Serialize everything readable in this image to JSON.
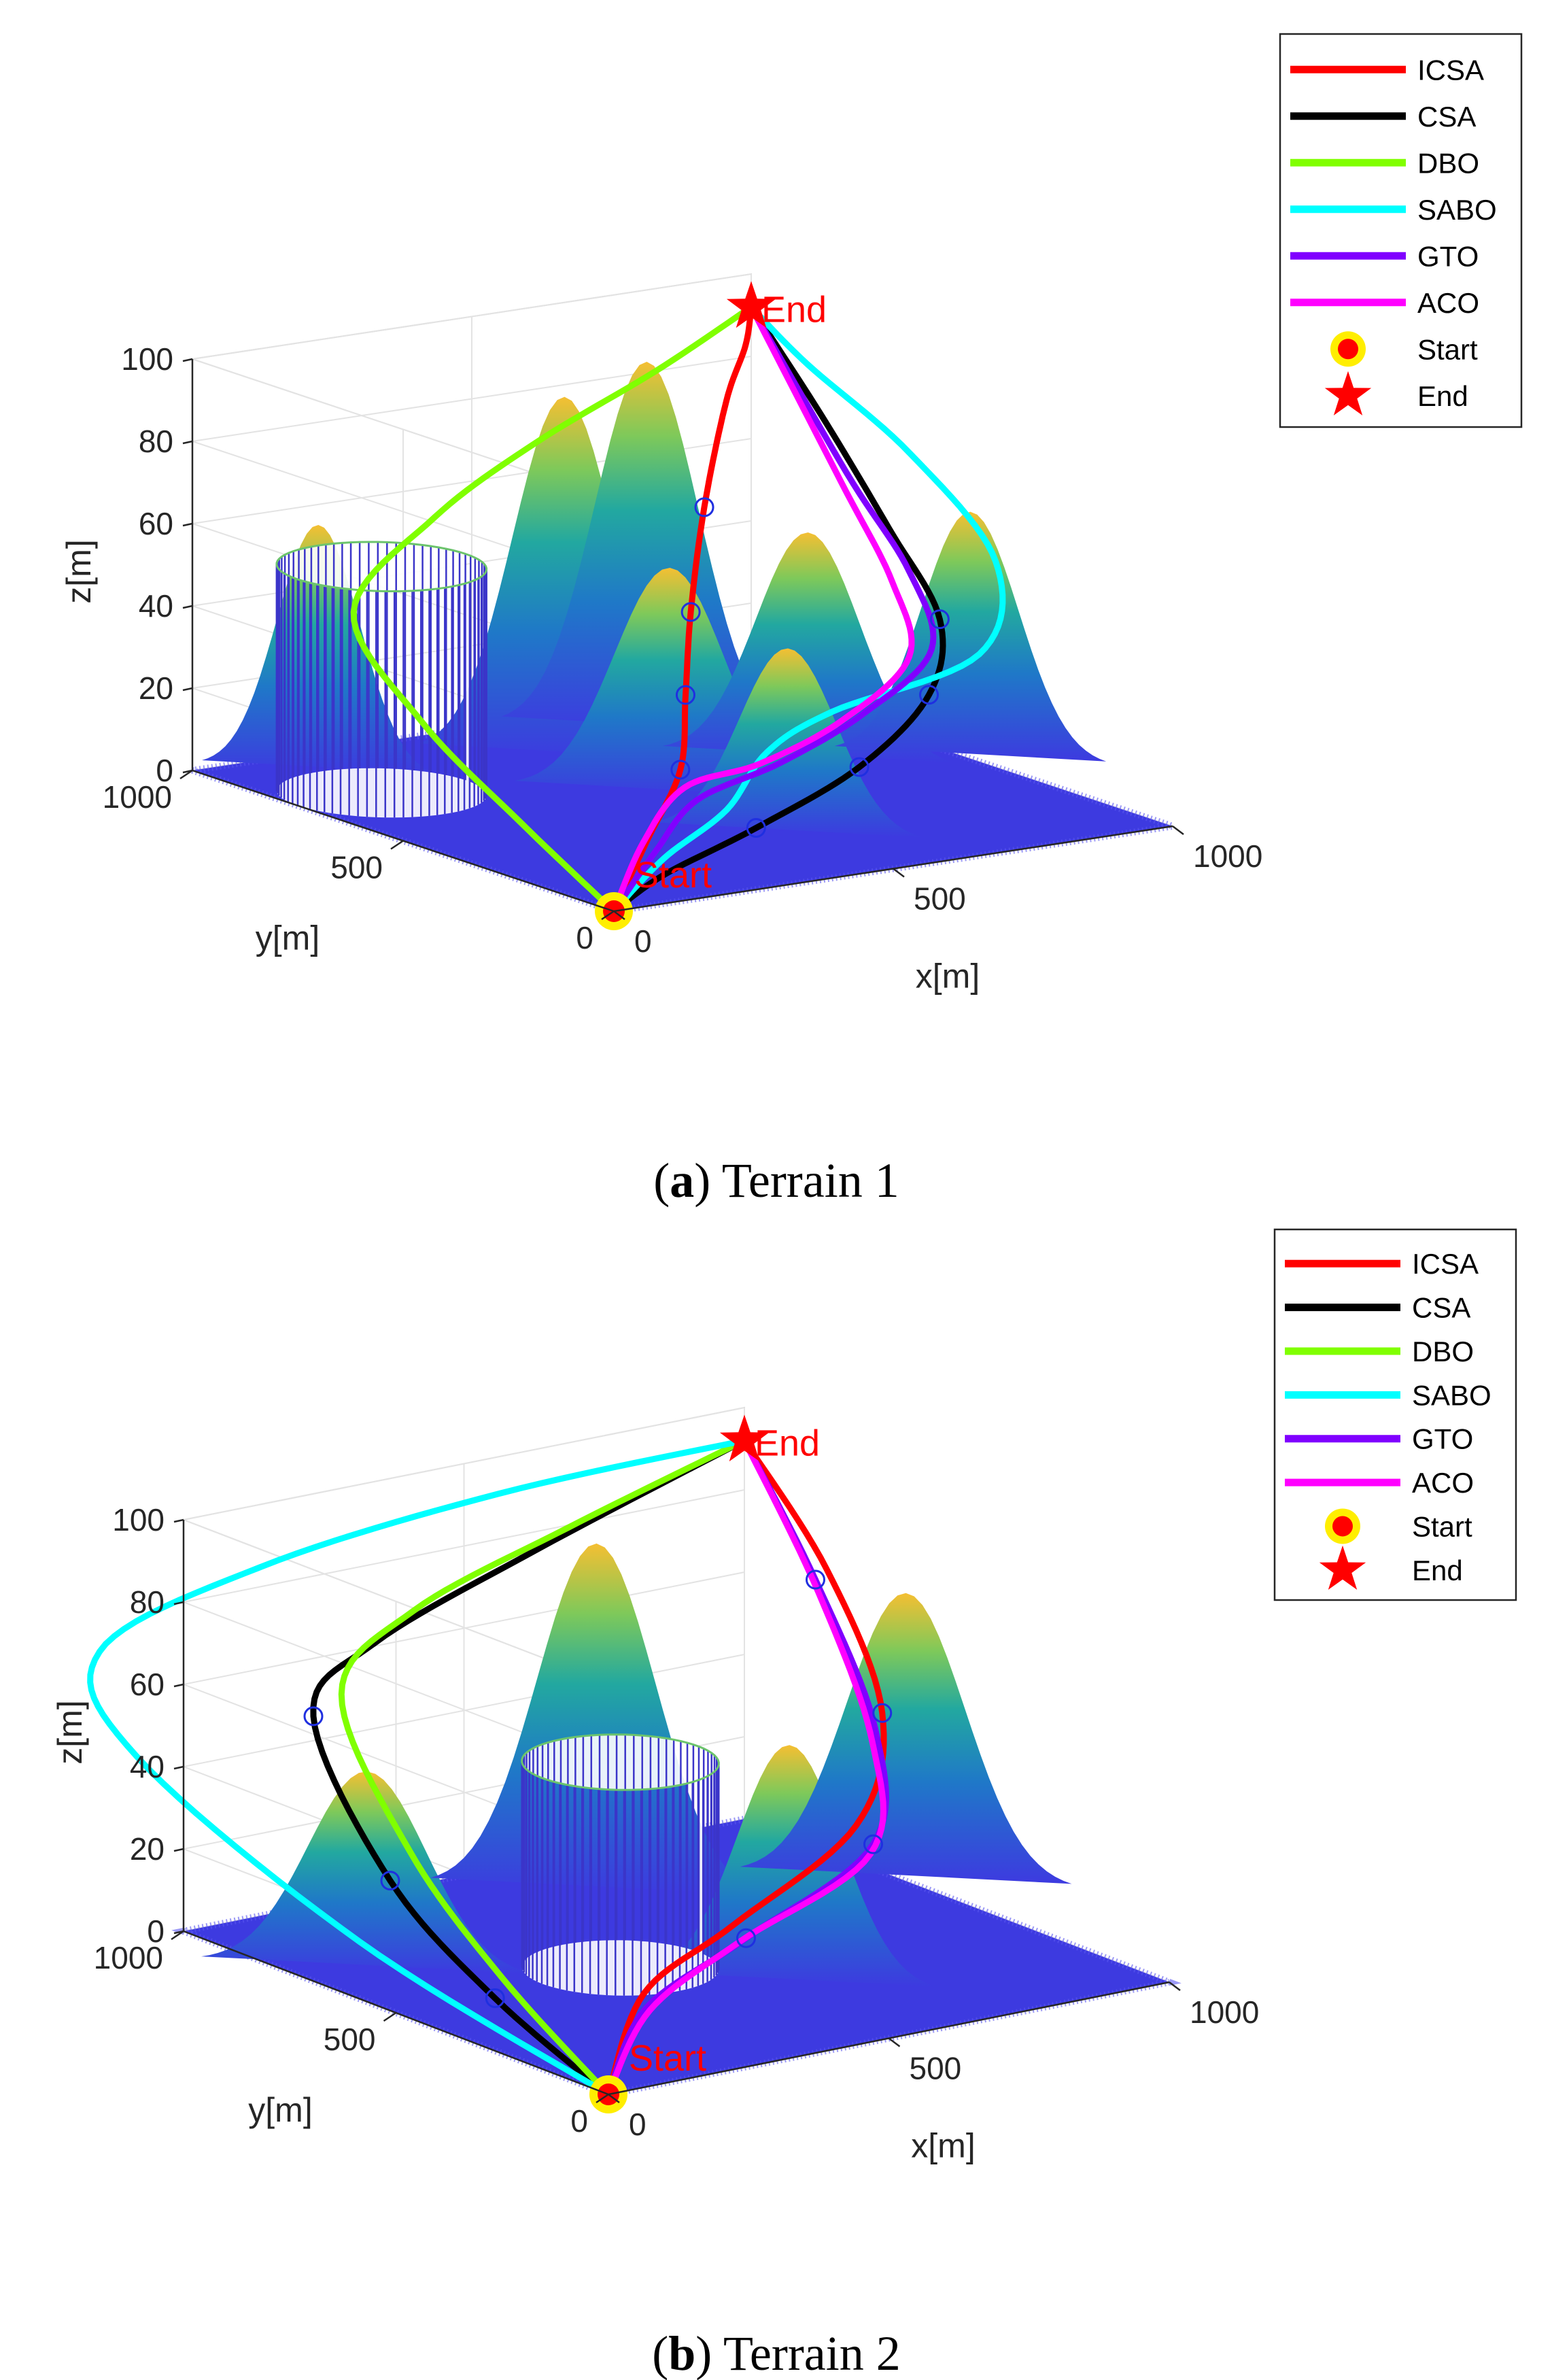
{
  "chart_data": [
    {
      "type": "3d-line",
      "panel_label": "a",
      "caption": "Terrain 1",
      "xlabel": "x[m]",
      "ylabel": "y[m]",
      "zlabel": "z[m]",
      "xlim": [
        0,
        1000
      ],
      "ylim": [
        0,
        1000
      ],
      "zlim": [
        0,
        100
      ],
      "xticks": [
        "0",
        "500",
        "1000"
      ],
      "yticks": [
        "0",
        "500",
        "1000"
      ],
      "zticks": [
        "0",
        "20",
        "40",
        "60",
        "80",
        "100"
      ],
      "start_label": "Start",
      "end_label": "End",
      "start": [
        0,
        0,
        0
      ],
      "end": [
        1000,
        1000,
        92
      ],
      "obstacles": [
        {
          "type": "cylinder",
          "center": [
            150,
            750
          ],
          "radius": 150,
          "height": 55
        }
      ],
      "peaks": [
        {
          "center": [
            150,
            900
          ],
          "height": 60,
          "sigma": 60
        },
        {
          "center": [
            500,
            780
          ],
          "height": 88,
          "sigma": 75
        },
        {
          "center": [
            700,
            850
          ],
          "height": 90,
          "sigma": 75
        },
        {
          "center": [
            500,
            530
          ],
          "height": 55,
          "sigma": 80
        },
        {
          "center": [
            800,
            600
          ],
          "height": 55,
          "sigma": 75
        },
        {
          "center": [
            500,
            250
          ],
          "height": 45,
          "sigma": 70
        },
        {
          "center": [
            1000,
            480
          ],
          "height": 60,
          "sigma": 70
        }
      ],
      "legend": {
        "location": "top-right",
        "entries": [
          {
            "label": "ICSA",
            "color": "#ff0000",
            "kind": "line"
          },
          {
            "label": "CSA",
            "color": "#000000",
            "kind": "line"
          },
          {
            "label": "DBO",
            "color": "#80ff00",
            "kind": "line"
          },
          {
            "label": "SABO",
            "color": "#00ffff",
            "kind": "line"
          },
          {
            "label": "GTO",
            "color": "#8000ff",
            "kind": "line"
          },
          {
            "label": "ACO",
            "color": "#ff00ff",
            "kind": "line"
          },
          {
            "label": "Start",
            "color": "#ff0000",
            "kind": "start-marker"
          },
          {
            "label": "End",
            "color": "#ff0000",
            "kind": "end-marker"
          }
        ]
      },
      "series": [
        {
          "name": "ICSA",
          "color": "#ff0000",
          "points": [
            [
              0,
              0,
              0
            ],
            [
              150,
              120,
              10
            ],
            [
              300,
              240,
              20
            ],
            [
              430,
              400,
              30
            ],
            [
              560,
              560,
              42
            ],
            [
              720,
              740,
              58
            ],
            [
              880,
              900,
              75
            ],
            [
              960,
              960,
              85
            ],
            [
              1000,
              1000,
              92
            ]
          ]
        },
        {
          "name": "CSA",
          "color": "#000000",
          "points": [
            [
              0,
              0,
              0
            ],
            [
              120,
              40,
              5
            ],
            [
              330,
              100,
              10
            ],
            [
              560,
              160,
              18
            ],
            [
              760,
              260,
              28
            ],
            [
              900,
              420,
              38
            ],
            [
              960,
              620,
              52
            ],
            [
              990,
              820,
              72
            ],
            [
              1000,
              1000,
              92
            ]
          ]
        },
        {
          "name": "DBO",
          "color": "#80ff00",
          "points": [
            [
              0,
              0,
              0
            ],
            [
              60,
              300,
              10
            ],
            [
              80,
              560,
              25
            ],
            [
              100,
              750,
              45
            ],
            [
              320,
              850,
              60
            ],
            [
              540,
              900,
              72
            ],
            [
              800,
              960,
              82
            ],
            [
              1000,
              1000,
              92
            ]
          ]
        },
        {
          "name": "SABO",
          "color": "#00ffff",
          "points": [
            [
              0,
              0,
              0
            ],
            [
              150,
              80,
              7
            ],
            [
              330,
              170,
              12
            ],
            [
              500,
              300,
              18
            ],
            [
              640,
              330,
              24
            ],
            [
              880,
              300,
              34
            ],
            [
              1000,
              420,
              50
            ],
            [
              1020,
              650,
              68
            ],
            [
              1010,
              880,
              82
            ],
            [
              1000,
              1000,
              92
            ]
          ]
        },
        {
          "name": "GTO",
          "color": "#8000ff",
          "points": [
            [
              0,
              0,
              0
            ],
            [
              150,
              100,
              8
            ],
            [
              300,
              200,
              14
            ],
            [
              480,
              240,
              18
            ],
            [
              660,
              280,
              25
            ],
            [
              840,
              360,
              34
            ],
            [
              920,
              520,
              46
            ],
            [
              960,
              720,
              62
            ],
            [
              1000,
              1000,
              92
            ]
          ]
        },
        {
          "name": "ACO",
          "color": "#ff00ff",
          "points": [
            [
              0,
              0,
              0
            ],
            [
              150,
              130,
              9
            ],
            [
              300,
              230,
              16
            ],
            [
              450,
              250,
              18
            ],
            [
              620,
              280,
              24
            ],
            [
              800,
              360,
              33
            ],
            [
              890,
              520,
              44
            ],
            [
              950,
              720,
              60
            ],
            [
              1000,
              1000,
              92
            ]
          ]
        }
      ],
      "waypoint_markers": [
        [
          300,
          240,
          20
        ],
        [
          430,
          400,
          30
        ],
        [
          560,
          560,
          42
        ],
        [
          720,
          740,
          58
        ],
        [
          330,
          100,
          10
        ],
        [
          560,
          160,
          18
        ],
        [
          760,
          260,
          28
        ],
        [
          900,
          420,
          38
        ]
      ]
    },
    {
      "type": "3d-line",
      "panel_label": "b",
      "caption": "Terrain 2",
      "xlabel": "x[m]",
      "ylabel": "y[m]",
      "zlabel": "z[m]",
      "xlim": [
        0,
        1000
      ],
      "ylim": [
        0,
        1000
      ],
      "zlim": [
        0,
        100
      ],
      "xticks": [
        "0",
        "500",
        "1000"
      ],
      "yticks": [
        "0",
        "500",
        "1000"
      ],
      "zticks": [
        "0",
        "20",
        "40",
        "60",
        "80",
        "100"
      ],
      "start_label": "Start",
      "end_label": "End",
      "start": [
        0,
        0,
        0
      ],
      "end": [
        1000,
        1000,
        92
      ],
      "obstacles": [
        {
          "type": "cylinder",
          "center": [
            400,
            500
          ],
          "radius": 140,
          "height": 50
        }
      ],
      "peaks": [
        {
          "center": [
            100,
            700
          ],
          "height": 48,
          "sigma": 85
        },
        {
          "center": [
            600,
            820
          ],
          "height": 85,
          "sigma": 85
        },
        {
          "center": [
            550,
            300
          ],
          "height": 58,
          "sigma": 75
        },
        {
          "center": [
            1000,
            620
          ],
          "height": 70,
          "sigma": 85
        }
      ],
      "legend": {
        "location": "top-right",
        "entries": [
          {
            "label": "ICSA",
            "color": "#ff0000",
            "kind": "line"
          },
          {
            "label": "CSA",
            "color": "#000000",
            "kind": "line"
          },
          {
            "label": "DBO",
            "color": "#80ff00",
            "kind": "line"
          },
          {
            "label": "SABO",
            "color": "#00ffff",
            "kind": "line"
          },
          {
            "label": "GTO",
            "color": "#8000ff",
            "kind": "line"
          },
          {
            "label": "ACO",
            "color": "#ff00ff",
            "kind": "line"
          },
          {
            "label": "Start",
            "color": "#ff0000",
            "kind": "start-marker"
          },
          {
            "label": "End",
            "color": "#ff0000",
            "kind": "end-marker"
          }
        ]
      },
      "series": [
        {
          "name": "ICSA",
          "color": "#ff0000",
          "points": [
            [
              0,
              0,
              0
            ],
            [
              200,
              180,
              12
            ],
            [
              450,
              300,
              17
            ],
            [
              760,
              420,
              28
            ],
            [
              920,
              570,
              45
            ],
            [
              980,
              780,
              70
            ],
            [
              1000,
              1000,
              92
            ]
          ]
        },
        {
          "name": "CSA",
          "color": "#000000",
          "points": [
            [
              0,
              0,
              0
            ],
            [
              10,
              280,
              12
            ],
            [
              20,
              540,
              30
            ],
            [
              80,
              800,
              58
            ],
            [
              250,
              880,
              68
            ],
            [
              600,
              960,
              78
            ],
            [
              1000,
              1000,
              92
            ]
          ]
        },
        {
          "name": "DBO",
          "color": "#80ff00",
          "points": [
            [
              0,
              0,
              0
            ],
            [
              40,
              300,
              15
            ],
            [
              70,
              560,
              35
            ],
            [
              130,
              800,
              62
            ],
            [
              320,
              880,
              74
            ],
            [
              640,
              940,
              83
            ],
            [
              1000,
              1000,
              92
            ]
          ]
        },
        {
          "name": "SABO",
          "color": "#00ffff",
          "points": [
            [
              0,
              0,
              0
            ],
            [
              -140,
              400,
              25
            ],
            [
              -250,
              780,
              58
            ],
            [
              -150,
              1000,
              72
            ],
            [
              200,
              1080,
              80
            ],
            [
              600,
              1050,
              88
            ],
            [
              1000,
              1000,
              92
            ]
          ]
        },
        {
          "name": "GTO",
          "color": "#8000ff",
          "points": [
            [
              0,
              0,
              0
            ],
            [
              180,
              150,
              10
            ],
            [
              450,
              270,
              15
            ],
            [
              760,
              380,
              25
            ],
            [
              900,
              560,
              42
            ],
            [
              960,
              780,
              68
            ],
            [
              1000,
              1000,
              92
            ]
          ]
        },
        {
          "name": "ACO",
          "color": "#ff00ff",
          "points": [
            [
              0,
              0,
              0
            ],
            [
              180,
              140,
              10
            ],
            [
              430,
              260,
              15
            ],
            [
              740,
              360,
              24
            ],
            [
              880,
              540,
              40
            ],
            [
              950,
              760,
              66
            ],
            [
              1000,
              1000,
              92
            ]
          ]
        }
      ],
      "waypoint_markers": [
        [
          450,
          270,
          15
        ],
        [
          760,
          380,
          25
        ],
        [
          920,
          570,
          45
        ],
        [
          960,
          780,
          68
        ],
        [
          20,
          540,
          30
        ],
        [
          80,
          800,
          58
        ],
        [
          10,
          280,
          12
        ]
      ]
    }
  ]
}
